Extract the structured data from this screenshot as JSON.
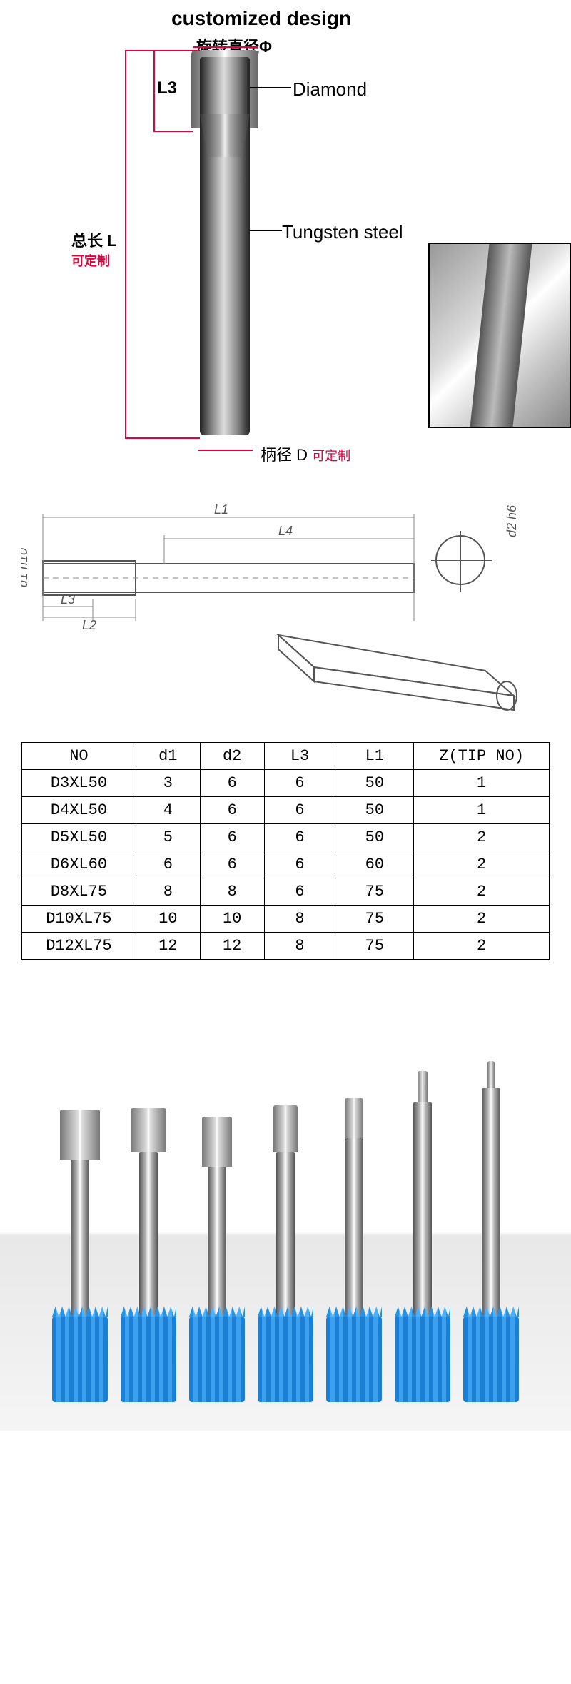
{
  "diagram": {
    "title": "customized design",
    "rotation_label": "旋转直径Φ",
    "L3_label": "L3",
    "total_length_label": "总长 L",
    "customizable_label": "可定制",
    "diamond_label": "Diamond",
    "tungsten_label": "Tungsten steel",
    "shank_label": "柄径 D",
    "colors": {
      "dimension_line": "#e4003a",
      "text": "#000000",
      "accent_red": "#e4003a"
    }
  },
  "tech": {
    "labels": {
      "L1": "L1",
      "L2": "L2",
      "L3": "L3",
      "L4": "L4",
      "d1": "d1 h10",
      "d2": "d2 h6"
    }
  },
  "table": {
    "columns": [
      "NO",
      "d1",
      "d2",
      "L3",
      "L1",
      "Z(TIP NO)"
    ],
    "rows": [
      [
        "D3XL50",
        "3",
        "6",
        "6",
        "50",
        "1"
      ],
      [
        "D4XL50",
        "4",
        "6",
        "6",
        "50",
        "1"
      ],
      [
        "D5XL50",
        "5",
        "6",
        "6",
        "50",
        "2"
      ],
      [
        "D6XL60",
        "6",
        "6",
        "6",
        "60",
        "2"
      ],
      [
        "D8XL75",
        "8",
        "8",
        "6",
        "75",
        "2"
      ],
      [
        "D10XL75",
        "10",
        "10",
        "8",
        "75",
        "2"
      ],
      [
        "D12XL75",
        "12",
        "12",
        "8",
        "75",
        "2"
      ]
    ],
    "col_widths": [
      "160px",
      "90px",
      "90px",
      "100px",
      "110px",
      "190px"
    ]
  },
  "photo": {
    "holder_color": "#1b7fd4",
    "bits": [
      {
        "shank_h": 220,
        "tip_w": 56,
        "tip_h": 70
      },
      {
        "shank_h": 230,
        "tip_w": 50,
        "tip_h": 62
      },
      {
        "shank_h": 210,
        "tip_w": 42,
        "tip_h": 70
      },
      {
        "shank_h": 230,
        "tip_w": 34,
        "tip_h": 66
      },
      {
        "shank_h": 250,
        "tip_w": 26,
        "tip_h": 56
      },
      {
        "shank_h": 300,
        "tip_w": 14,
        "tip_h": 44
      },
      {
        "shank_h": 320,
        "tip_w": 10,
        "tip_h": 38
      }
    ]
  }
}
